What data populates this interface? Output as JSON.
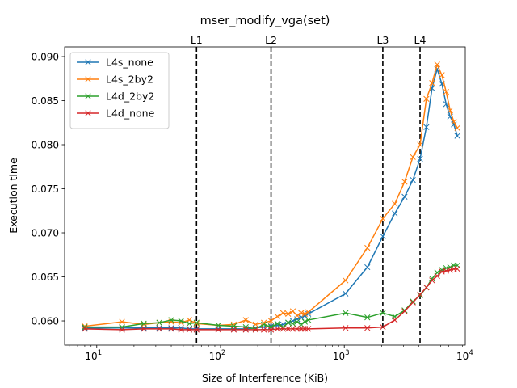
{
  "chart_data": {
    "type": "line",
    "title": "mser_modify_vga(set)",
    "xlabel": "Size of Interference (KiB)",
    "ylabel": "Execution time",
    "xscale": "log",
    "xlim": [
      5.5,
      9500
    ],
    "ylim": [
      0.05725,
      0.0911
    ],
    "x_ticks": [
      {
        "value": 10,
        "base": "10",
        "exp": "1"
      },
      {
        "value": 100,
        "base": "10",
        "exp": "2"
      },
      {
        "value": 1000,
        "base": "10",
        "exp": "3"
      },
      {
        "value": 10000,
        "base": "10",
        "exp": "4"
      }
    ],
    "y_ticks": [
      {
        "value": 0.06,
        "label": "0.060"
      },
      {
        "value": 0.065,
        "label": "0.065"
      },
      {
        "value": 0.07,
        "label": "0.070"
      },
      {
        "value": 0.075,
        "label": "0.075"
      },
      {
        "value": 0.08,
        "label": "0.080"
      },
      {
        "value": 0.085,
        "label": "0.085"
      },
      {
        "value": 0.09,
        "label": "0.090"
      }
    ],
    "vlines": [
      {
        "label": "L1",
        "x": 64
      },
      {
        "label": "L2",
        "x": 256
      },
      {
        "label": "L3",
        "x": 2048
      },
      {
        "label": "L4",
        "x": 4096
      }
    ],
    "legend_position": "upper-left",
    "grid": false,
    "x": [
      8,
      16,
      24,
      32,
      40,
      48,
      56,
      64,
      96,
      128,
      160,
      192,
      224,
      256,
      288,
      320,
      352,
      384,
      416,
      448,
      480,
      512,
      1024,
      1536,
      2048,
      2560,
      3072,
      3584,
      4096,
      4608,
      5120,
      5632,
      6144,
      6656,
      7168,
      7680,
      8192
    ],
    "series": [
      {
        "name": "L4s_none",
        "color": "#1f77b4",
        "values": [
          0.0592,
          0.0592,
          0.0592,
          0.0592,
          0.0592,
          0.0592,
          0.0591,
          0.0591,
          0.0591,
          0.0591,
          0.0591,
          0.0592,
          0.0593,
          0.0594,
          0.0595,
          0.0596,
          0.0598,
          0.06,
          0.0602,
          0.0604,
          0.0606,
          0.0608,
          0.0631,
          0.0661,
          0.0696,
          0.0722,
          0.0741,
          0.076,
          0.0784,
          0.082,
          0.0864,
          0.0886,
          0.0869,
          0.0846,
          0.0832,
          0.0823,
          0.081
        ]
      },
      {
        "name": "L4s_2by2",
        "color": "#ff7f0e",
        "values": [
          0.0594,
          0.0599,
          0.0596,
          0.0598,
          0.0599,
          0.0598,
          0.0601,
          0.0597,
          0.0595,
          0.0596,
          0.0601,
          0.0596,
          0.0598,
          0.06,
          0.0605,
          0.0609,
          0.0608,
          0.0611,
          0.0606,
          0.0609,
          0.0608,
          0.061,
          0.0646,
          0.0683,
          0.0716,
          0.0733,
          0.0758,
          0.0786,
          0.08,
          0.0852,
          0.087,
          0.0891,
          0.0879,
          0.086,
          0.0839,
          0.0826,
          0.0819
        ]
      },
      {
        "name": "L4d_2by2",
        "color": "#2ca02c",
        "values": [
          0.0593,
          0.0593,
          0.0597,
          0.0598,
          0.0601,
          0.06,
          0.0597,
          0.0598,
          0.0595,
          0.0594,
          0.0593,
          0.0591,
          0.0596,
          0.0593,
          0.0597,
          0.0593,
          0.0598,
          0.0597,
          0.0599,
          0.0596,
          0.0599,
          0.0601,
          0.0609,
          0.0604,
          0.0609,
          0.0605,
          0.0612,
          0.0622,
          0.0629,
          0.0638,
          0.0648,
          0.0655,
          0.0658,
          0.066,
          0.0661,
          0.0663,
          0.0663
        ]
      },
      {
        "name": "L4d_none",
        "color": "#d62728",
        "values": [
          0.0591,
          0.059,
          0.0591,
          0.0591,
          0.0591,
          0.059,
          0.059,
          0.059,
          0.059,
          0.059,
          0.059,
          0.059,
          0.059,
          0.059,
          0.0591,
          0.0591,
          0.0591,
          0.0591,
          0.0591,
          0.0591,
          0.0591,
          0.0591,
          0.0592,
          0.0592,
          0.0593,
          0.0601,
          0.0611,
          0.0621,
          0.063,
          0.0638,
          0.0646,
          0.0651,
          0.0656,
          0.0657,
          0.0658,
          0.0659,
          0.0659
        ]
      }
    ]
  }
}
